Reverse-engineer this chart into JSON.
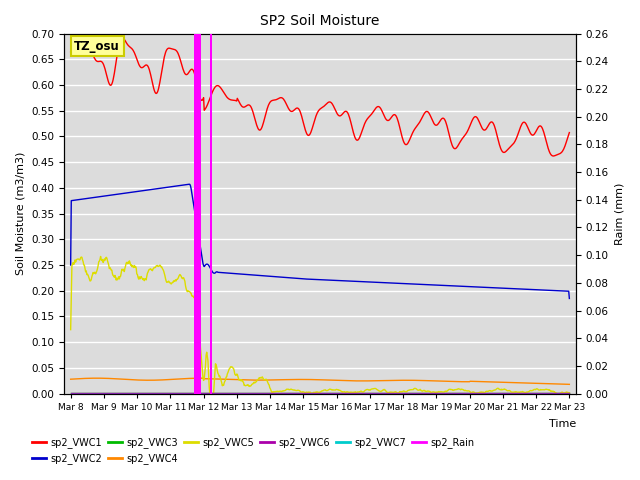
{
  "title": "SP2 Soil Moisture",
  "xlabel": "Time",
  "ylabel_left": "Soil Moisture (m3/m3)",
  "ylabel_right": "Raim (mm)",
  "ylim_left": [
    0.0,
    0.7
  ],
  "ylim_right": [
    0.0,
    0.26
  ],
  "xtick_labels": [
    "Mar 8",
    "Mar 9",
    "Mar 10",
    "Mar 11",
    "Mar 12",
    "Mar 13",
    "Mar 14",
    "Mar 15",
    "Mar 16",
    "Mar 17",
    "Mar 18",
    "Mar 19",
    "Mar 20",
    "Mar 21",
    "Mar 22",
    "Mar 23"
  ],
  "bg_color": "#dcdcdc",
  "grid_color": "#ffffff",
  "annotation_text": "TZ_osu",
  "annotation_bg": "#ffff99",
  "annotation_border": "#cccc00",
  "series_colors": {
    "sp2_VWC1": "#ff0000",
    "sp2_VWC2": "#0000cc",
    "sp2_VWC3": "#00bb00",
    "sp2_VWC4": "#ff8800",
    "sp2_VWC5": "#dddd00",
    "sp2_VWC6": "#aa00aa",
    "sp2_VWC7": "#00cccc",
    "sp2_Rain": "#ff00ff"
  }
}
